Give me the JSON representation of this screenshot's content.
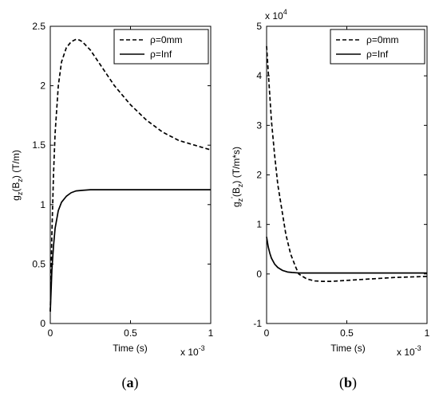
{
  "captions": [
    {
      "open": "(",
      "letter": "a",
      "close": ")"
    },
    {
      "open": "(",
      "letter": "b",
      "close": ")"
    }
  ],
  "chart_data": [
    {
      "type": "line",
      "xlabel": "Time (s)",
      "ylabel": "g_z(B_z) (T/m)",
      "ylabel_main": "g",
      "ylabel_sub1": "z",
      "ylabel_mid": "(B",
      "ylabel_sub2": "z",
      "ylabel_end": ") (T/m)",
      "x_multiplier": "x 10",
      "x_multiplier_exp": "-3",
      "xlim": [
        0,
        1
      ],
      "ylim": [
        0,
        2.5
      ],
      "xticks": [
        0,
        0.5,
        1
      ],
      "xtick_labels": [
        "0",
        "0.5",
        "1"
      ],
      "yticks": [
        0,
        0.5,
        1,
        1.5,
        2,
        2.5
      ],
      "ytick_labels": [
        "0",
        "0.5",
        "1",
        "1.5",
        "2",
        "2.5"
      ],
      "grid": false,
      "legend_position": "top-right",
      "series": [
        {
          "name": "ρ=0mm",
          "style": "dashed",
          "x": [
            0,
            0.01,
            0.02,
            0.03,
            0.05,
            0.07,
            0.1,
            0.13,
            0.16,
            0.18,
            0.2,
            0.25,
            0.3,
            0.35,
            0.4,
            0.5,
            0.6,
            0.7,
            0.8,
            0.9,
            1.0
          ],
          "y": [
            0.1,
            0.75,
            1.25,
            1.6,
            2.0,
            2.2,
            2.32,
            2.37,
            2.39,
            2.385,
            2.37,
            2.3,
            2.2,
            2.1,
            2.0,
            1.84,
            1.71,
            1.61,
            1.54,
            1.5,
            1.46
          ]
        },
        {
          "name": "ρ=Inf",
          "style": "solid",
          "x": [
            0,
            0.01,
            0.02,
            0.03,
            0.05,
            0.07,
            0.1,
            0.13,
            0.16,
            0.2,
            0.25,
            0.3,
            0.4,
            0.5,
            0.6,
            0.7,
            0.8,
            0.9,
            1.0
          ],
          "y": [
            0.1,
            0.45,
            0.65,
            0.8,
            0.95,
            1.02,
            1.07,
            1.1,
            1.115,
            1.12,
            1.125,
            1.125,
            1.125,
            1.125,
            1.125,
            1.125,
            1.125,
            1.125,
            1.125
          ]
        }
      ]
    },
    {
      "type": "line",
      "xlabel": "Time (s)",
      "ylabel": "g_z'(B_z) (T/m*s)",
      "ylabel_main": "g",
      "ylabel_sub1": "z",
      "ylabel_prime": "'",
      "ylabel_mid": "(B",
      "ylabel_sub2": "z",
      "ylabel_end": ") (T/m*s)",
      "x_multiplier": "x 10",
      "x_multiplier_exp": "-3",
      "y_multiplier": "x 10",
      "y_multiplier_exp": "4",
      "xlim": [
        0,
        1
      ],
      "ylim": [
        -1,
        5
      ],
      "xticks": [
        0,
        0.5,
        1
      ],
      "xtick_labels": [
        "0",
        "0.5",
        "1"
      ],
      "yticks": [
        -1,
        0,
        1,
        2,
        3,
        4,
        5
      ],
      "ytick_labels": [
        "-1",
        "0",
        "1",
        "2",
        "3",
        "4",
        "5"
      ],
      "grid": false,
      "legend_position": "top-right",
      "series": [
        {
          "name": "ρ=0mm",
          "style": "dashed",
          "x": [
            0,
            0.01,
            0.02,
            0.03,
            0.05,
            0.07,
            0.1,
            0.12,
            0.15,
            0.18,
            0.2,
            0.25,
            0.3,
            0.35,
            0.4,
            0.5,
            0.6,
            0.7,
            0.8,
            0.9,
            1.0
          ],
          "y": [
            4.6,
            4.1,
            3.6,
            3.1,
            2.4,
            1.8,
            1.2,
            0.8,
            0.4,
            0.15,
            0.0,
            -0.1,
            -0.14,
            -0.15,
            -0.15,
            -0.13,
            -0.11,
            -0.09,
            -0.07,
            -0.06,
            -0.05
          ]
        },
        {
          "name": "ρ=Inf",
          "style": "solid",
          "x": [
            0,
            0.01,
            0.02,
            0.03,
            0.05,
            0.07,
            0.1,
            0.13,
            0.16,
            0.2,
            0.25,
            0.3,
            0.4,
            0.5,
            0.6,
            0.7,
            0.8,
            0.9,
            1.0
          ],
          "y": [
            0.75,
            0.55,
            0.42,
            0.32,
            0.2,
            0.13,
            0.07,
            0.04,
            0.03,
            0.02,
            0.02,
            0.02,
            0.02,
            0.02,
            0.02,
            0.02,
            0.02,
            0.02,
            0.02
          ]
        }
      ]
    }
  ]
}
